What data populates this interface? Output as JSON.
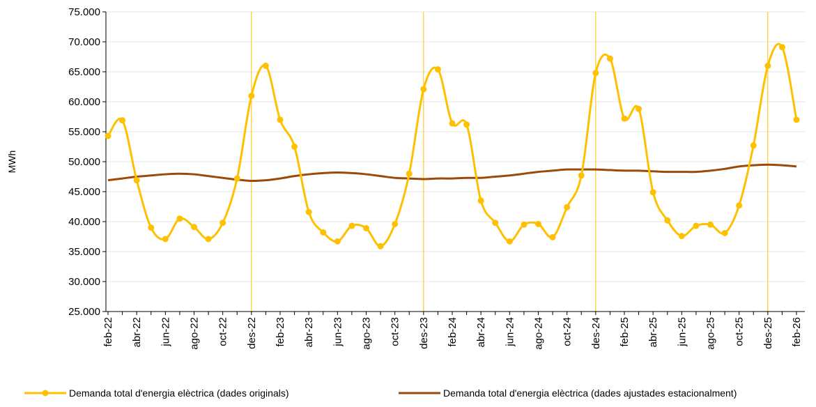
{
  "chart_data": {
    "type": "line",
    "y_label": "MWh",
    "categories": [
      "feb-22",
      null,
      "abr-22",
      null,
      "jun-22",
      null,
      "ago-22",
      null,
      "oct-22",
      null,
      "des-22",
      null,
      "feb-23",
      null,
      "abr-23",
      null,
      "jun-23",
      null,
      "ago-23",
      null,
      "oct-23",
      null,
      "des-23",
      null,
      "feb-24",
      null,
      "abr-24",
      null,
      "jun-24",
      null,
      "ago-24",
      null,
      "oct-24",
      null,
      "des-24",
      null,
      "feb-25",
      null,
      "abr-25",
      null,
      "jun-25",
      null,
      "ago-25",
      null,
      "oct-25",
      null,
      "des-25",
      null,
      "feb-26"
    ],
    "series": [
      {
        "name": "Demanda total d'energia elèctrica (dades originals)",
        "color": "#ffc000",
        "markers": true,
        "values": [
          54300,
          56900,
          46900,
          39000,
          37100,
          40500,
          39100,
          37100,
          39800,
          47200,
          61000,
          66000,
          57000,
          52500,
          41600,
          38200,
          36700,
          39300,
          38900,
          35900,
          39600,
          48000,
          62100,
          65400,
          56400,
          56200,
          43500,
          39800,
          36700,
          39500,
          39600,
          37400,
          42400,
          47700,
          64800,
          67200,
          57200,
          58800,
          44900,
          40200,
          37600,
          39300,
          39500,
          38100,
          42700,
          52700,
          66000,
          69100,
          57000
        ]
      },
      {
        "name": "Demanda total d'energia elèctrica (dades ajustades estacionalment)",
        "color": "#9c4a07",
        "markers": false,
        "values": [
          46900,
          47200,
          47500,
          47700,
          47900,
          48000,
          47900,
          47600,
          47300,
          47000,
          46800,
          46900,
          47200,
          47600,
          47900,
          48100,
          48200,
          48100,
          47900,
          47600,
          47300,
          47200,
          47100,
          47200,
          47200,
          47300,
          47300,
          47500,
          47700,
          48000,
          48300,
          48500,
          48700,
          48700,
          48700,
          48600,
          48500,
          48500,
          48400,
          48300,
          48300,
          48300,
          48500,
          48800,
          49200,
          49400,
          49500,
          49400,
          49200
        ]
      }
    ],
    "ylim": [
      25000,
      75000
    ],
    "yticks": [
      {
        "value": 25000,
        "label": "25.000"
      },
      {
        "value": 30000,
        "label": "30.000"
      },
      {
        "value": 35000,
        "label": "35.000"
      },
      {
        "value": 40000,
        "label": "40.000"
      },
      {
        "value": 45000,
        "label": "45.000"
      },
      {
        "value": 50000,
        "label": "50.000"
      },
      {
        "value": 55000,
        "label": "55.000"
      },
      {
        "value": 60000,
        "label": "60.000"
      },
      {
        "value": 65000,
        "label": "65.000"
      },
      {
        "value": 70000,
        "label": "70.000"
      },
      {
        "value": 75000,
        "label": "75.000"
      }
    ],
    "grid": true,
    "legend": "bottom"
  }
}
